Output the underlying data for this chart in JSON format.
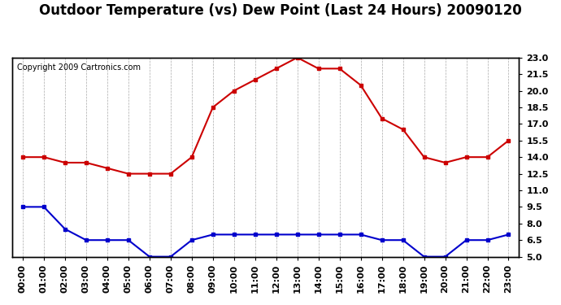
{
  "title": "Outdoor Temperature (vs) Dew Point (Last 24 Hours) 20090120",
  "copyright": "Copyright 2009 Cartronics.com",
  "hours": [
    "00:00",
    "01:00",
    "02:00",
    "03:00",
    "04:00",
    "05:00",
    "06:00",
    "07:00",
    "08:00",
    "09:00",
    "10:00",
    "11:00",
    "12:00",
    "13:00",
    "14:00",
    "15:00",
    "16:00",
    "17:00",
    "18:00",
    "19:00",
    "20:00",
    "21:00",
    "22:00",
    "23:00"
  ],
  "temp": [
    14.0,
    14.0,
    13.5,
    13.5,
    13.0,
    12.5,
    12.5,
    12.5,
    14.0,
    18.5,
    20.0,
    21.0,
    22.0,
    23.0,
    22.0,
    22.0,
    20.5,
    17.5,
    16.5,
    14.0,
    13.5,
    14.0,
    14.0,
    15.5
  ],
  "dew": [
    9.5,
    9.5,
    7.5,
    6.5,
    6.5,
    6.5,
    5.0,
    5.0,
    6.5,
    7.0,
    7.0,
    7.0,
    7.0,
    7.0,
    7.0,
    7.0,
    7.0,
    6.5,
    6.5,
    5.0,
    5.0,
    6.5,
    6.5,
    7.0
  ],
  "temp_color": "#cc0000",
  "dew_color": "#0000cc",
  "bg_color": "#ffffff",
  "grid_color": "#aaaaaa",
  "ylim": [
    5.0,
    23.0
  ],
  "yticks": [
    5.0,
    6.5,
    8.0,
    9.5,
    11.0,
    12.5,
    14.0,
    15.5,
    17.0,
    18.5,
    20.0,
    21.5,
    23.0
  ],
  "title_fontsize": 12,
  "copyright_fontsize": 7,
  "tick_fontsize": 8
}
